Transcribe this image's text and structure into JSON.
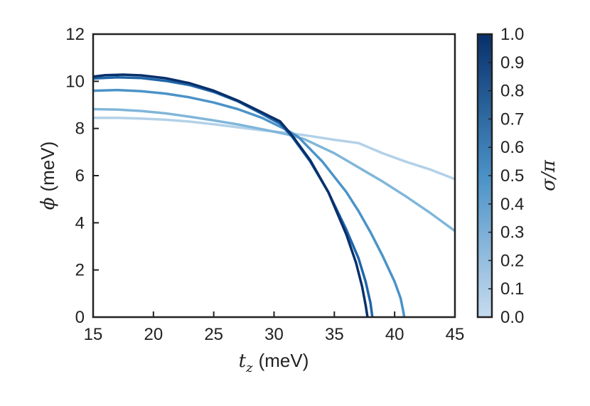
{
  "chart_data": {
    "type": "line",
    "xlabel": {
      "symbol": "t",
      "subscript": "z",
      "unit": "(meV)"
    },
    "ylabel": {
      "symbol": "ϕ",
      "unit": "(meV)"
    },
    "xlim": [
      15,
      45
    ],
    "ylim": [
      0,
      12
    ],
    "xticks": [
      "15",
      "20",
      "25",
      "30",
      "35",
      "40",
      "45"
    ],
    "yticks": [
      "0",
      "2",
      "4",
      "6",
      "8",
      "10",
      "12"
    ],
    "grid": false,
    "colorbar": {
      "label": "σ/π",
      "min": 0.0,
      "max": 1.0,
      "ticks": [
        "0.0",
        "0.1",
        "0.2",
        "0.3",
        "0.4",
        "0.5",
        "0.6",
        "0.7",
        "0.8",
        "0.9",
        "1.0"
      ],
      "color_low": "#c6dbef",
      "color_high": "#08306b"
    },
    "series": [
      {
        "sigma_over_pi": 0.2,
        "color": "#b3d1e8",
        "x": [
          15,
          17,
          19,
          21,
          23,
          25,
          27,
          29,
          31,
          33,
          35,
          37,
          39,
          41,
          43,
          45
        ],
        "y": [
          8.45,
          8.45,
          8.42,
          8.37,
          8.29,
          8.18,
          8.05,
          7.92,
          7.82,
          7.68,
          7.52,
          7.38,
          6.95,
          6.58,
          6.25,
          5.85
        ]
      },
      {
        "sigma_over_pi": 0.4,
        "color": "#80b6da",
        "x": [
          15,
          17,
          19,
          21,
          23,
          25,
          27,
          29,
          31,
          32.5,
          35,
          37,
          39,
          41,
          43,
          45
        ],
        "y": [
          8.82,
          8.8,
          8.74,
          8.64,
          8.5,
          8.34,
          8.17,
          7.97,
          7.76,
          7.55,
          6.95,
          6.35,
          5.75,
          5.1,
          4.4,
          3.65
        ]
      },
      {
        "sigma_over_pi": 0.6,
        "color": "#4b93c8",
        "x": [
          15,
          17,
          19,
          21,
          23,
          25,
          27,
          29,
          31,
          32,
          34,
          36,
          37,
          38,
          39,
          40,
          40.5,
          40.7,
          40.8
        ],
        "y": [
          9.6,
          9.63,
          9.58,
          9.48,
          9.32,
          9.1,
          8.82,
          8.45,
          7.95,
          7.65,
          6.6,
          5.3,
          4.5,
          3.6,
          2.6,
          1.5,
          0.8,
          0.3,
          0.0
        ]
      },
      {
        "sigma_over_pi": 0.8,
        "color": "#1f65a9",
        "x": [
          15,
          17,
          19,
          21,
          23,
          25,
          27,
          29,
          30.5,
          31.5,
          33,
          34.5,
          36,
          37,
          37.6,
          38,
          38.15
        ],
        "y": [
          10.12,
          10.17,
          10.14,
          10.02,
          9.84,
          9.55,
          9.15,
          8.62,
          8.2,
          7.65,
          6.6,
          5.3,
          3.7,
          2.5,
          1.5,
          0.6,
          0.0
        ]
      },
      {
        "sigma_over_pi": 1.0,
        "color": "#08306b",
        "x": [
          15,
          16,
          17.5,
          19,
          21,
          23,
          25,
          27,
          29,
          30.5,
          31.5,
          33,
          34.5,
          36,
          36.8,
          37.3,
          37.6,
          37.75
        ],
        "y": [
          10.2,
          10.26,
          10.28,
          10.25,
          10.13,
          9.92,
          9.6,
          9.18,
          8.68,
          8.3,
          7.7,
          6.65,
          5.3,
          3.5,
          2.3,
          1.3,
          0.5,
          0.0
        ]
      }
    ]
  }
}
